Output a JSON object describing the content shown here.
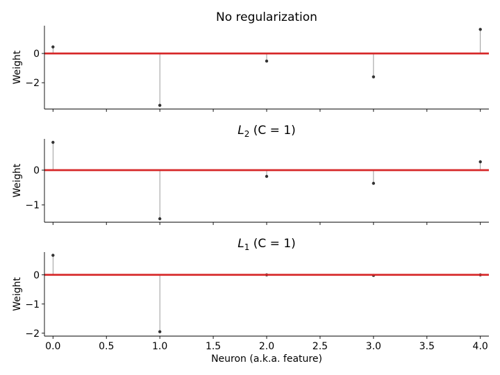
{
  "chart_data": [
    {
      "type": "stem",
      "title_parts": [
        "No regularization"
      ],
      "ylabel": "Weight",
      "x": [
        0,
        1,
        2,
        3,
        4
      ],
      "values": [
        0.45,
        -3.55,
        -0.52,
        -1.6,
        1.65
      ],
      "ylim": [
        -3.8,
        1.9
      ],
      "yticks": [
        0,
        -2
      ],
      "ytick_labels": [
        "0",
        "−2"
      ],
      "zero_line_color": "#d62728"
    },
    {
      "type": "stem",
      "title_parts": [
        "L",
        "2",
        " (C = 1)"
      ],
      "ylabel": "Weight",
      "x": [
        0,
        1,
        2,
        3,
        4
      ],
      "values": [
        0.8,
        -1.4,
        -0.18,
        -0.38,
        0.24
      ],
      "ylim": [
        -1.5,
        0.9
      ],
      "yticks": [
        0,
        -1
      ],
      "ytick_labels": [
        "0",
        "−1"
      ],
      "zero_line_color": "#d62728"
    },
    {
      "type": "stem",
      "title_parts": [
        "L",
        "1",
        " (C = 1)"
      ],
      "ylabel": "Weight",
      "x": [
        0,
        1,
        2,
        3,
        4
      ],
      "values": [
        0.67,
        -1.95,
        0.0,
        -0.02,
        0.0
      ],
      "ylim": [
        -2.1,
        0.78
      ],
      "yticks": [
        0,
        -1,
        -2
      ],
      "ytick_labels": [
        "0",
        "−1",
        "−2"
      ],
      "zero_line_color": "#d62728"
    }
  ],
  "shared_x": {
    "xlabel": "Neuron (a.k.a. feature)",
    "xlim": [
      -0.08,
      4.08
    ],
    "xticks": [
      0,
      0.5,
      1,
      1.5,
      2,
      2.5,
      3,
      3.5,
      4
    ],
    "xtick_labels": [
      "0.0",
      "0.5",
      "1.0",
      "1.5",
      "2.0",
      "2.5",
      "3.0",
      "3.5",
      "4.0"
    ]
  }
}
